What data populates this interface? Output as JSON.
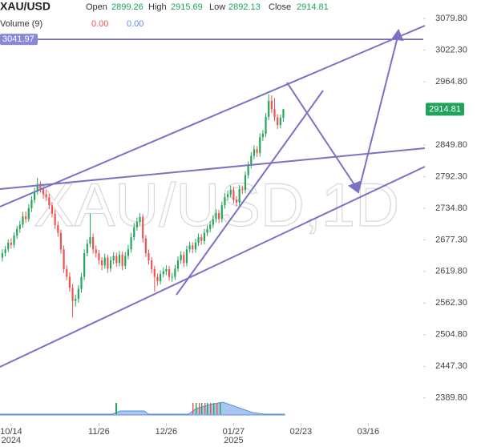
{
  "chart_data": {
    "type": "candlestick",
    "symbol": "XAU/USD",
    "watermark": "XAU/USD,1D",
    "legend": {
      "open_label": "Open",
      "open": 2899.26,
      "high_label": "High",
      "high": 2915.69,
      "low_label": "Low",
      "low": 2892.13,
      "close_label": "Close",
      "close": 2914.81,
      "volume_label": "Volume (9)",
      "volume_a": "0.00",
      "volume_b": "0.00"
    },
    "up_color": "#22a65b",
    "down_color": "#ef5350",
    "level": {
      "value": 3041.97,
      "color": "#5b5a9e"
    },
    "last_price": {
      "value": 2914.81,
      "color": "#1fa35a"
    },
    "ohlc": [
      [
        2645,
        2660,
        2638,
        2653
      ],
      [
        2653,
        2666,
        2647,
        2660
      ],
      [
        2660,
        2678,
        2655,
        2672
      ],
      [
        2672,
        2680,
        2661,
        2668
      ],
      [
        2668,
        2691,
        2663,
        2685
      ],
      [
        2685,
        2703,
        2679,
        2697
      ],
      [
        2697,
        2712,
        2690,
        2705
      ],
      [
        2705,
        2728,
        2699,
        2720
      ],
      [
        2720,
        2729,
        2708,
        2715
      ],
      [
        2715,
        2742,
        2710,
        2735
      ],
      [
        2735,
        2757,
        2728,
        2750
      ],
      [
        2750,
        2772,
        2744,
        2765
      ],
      [
        2765,
        2790,
        2759,
        2777
      ],
      [
        2777,
        2784,
        2763,
        2770
      ],
      [
        2770,
        2776,
        2752,
        2760
      ],
      [
        2760,
        2768,
        2748,
        2755
      ],
      [
        2755,
        2761,
        2733,
        2740
      ],
      [
        2740,
        2746,
        2718,
        2725
      ],
      [
        2725,
        2732,
        2697,
        2704
      ],
      [
        2704,
        2711,
        2683,
        2690
      ],
      [
        2690,
        2696,
        2652,
        2660
      ],
      [
        2660,
        2667,
        2617,
        2624
      ],
      [
        2624,
        2631,
        2603,
        2610
      ],
      [
        2610,
        2618,
        2583,
        2590
      ],
      [
        2590,
        2597,
        2536,
        2566
      ],
      [
        2566,
        2578,
        2556,
        2570
      ],
      [
        2570,
        2595,
        2563,
        2588
      ],
      [
        2588,
        2617,
        2581,
        2610
      ],
      [
        2610,
        2660,
        2604,
        2653
      ],
      [
        2653,
        2678,
        2647,
        2670
      ],
      [
        2670,
        2725,
        2664,
        2682
      ],
      [
        2682,
        2689,
        2652,
        2660
      ],
      [
        2660,
        2667,
        2645,
        2653
      ],
      [
        2653,
        2659,
        2632,
        2640
      ],
      [
        2640,
        2646,
        2622,
        2631
      ],
      [
        2631,
        2652,
        2625,
        2645
      ],
      [
        2645,
        2650,
        2617,
        2625
      ],
      [
        2625,
        2647,
        2619,
        2640
      ],
      [
        2640,
        2655,
        2633,
        2648
      ],
      [
        2648,
        2654,
        2628,
        2635
      ],
      [
        2635,
        2657,
        2629,
        2650
      ],
      [
        2650,
        2656,
        2622,
        2630
      ],
      [
        2630,
        2655,
        2624,
        2648
      ],
      [
        2648,
        2668,
        2642,
        2660
      ],
      [
        2660,
        2690,
        2654,
        2682
      ],
      [
        2682,
        2708,
        2676,
        2700
      ],
      [
        2700,
        2718,
        2694,
        2710
      ],
      [
        2710,
        2726,
        2703,
        2719
      ],
      [
        2719,
        2724,
        2672,
        2680
      ],
      [
        2680,
        2686,
        2646,
        2653
      ],
      [
        2653,
        2660,
        2633,
        2640
      ],
      [
        2640,
        2646,
        2616,
        2624
      ],
      [
        2624,
        2630,
        2583,
        2610
      ],
      [
        2610,
        2616,
        2594,
        2602
      ],
      [
        2602,
        2622,
        2596,
        2615
      ],
      [
        2615,
        2627,
        2609,
        2620
      ],
      [
        2620,
        2631,
        2613,
        2624
      ],
      [
        2624,
        2630,
        2603,
        2610
      ],
      [
        2610,
        2617,
        2601,
        2610
      ],
      [
        2610,
        2632,
        2604,
        2625
      ],
      [
        2625,
        2647,
        2619,
        2640
      ],
      [
        2640,
        2657,
        2634,
        2650
      ],
      [
        2650,
        2656,
        2628,
        2635
      ],
      [
        2635,
        2667,
        2629,
        2660
      ],
      [
        2660,
        2674,
        2654,
        2667
      ],
      [
        2667,
        2673,
        2653,
        2660
      ],
      [
        2660,
        2679,
        2654,
        2672
      ],
      [
        2672,
        2689,
        2666,
        2682
      ],
      [
        2682,
        2688,
        2668,
        2675
      ],
      [
        2675,
        2697,
        2669,
        2690
      ],
      [
        2690,
        2704,
        2684,
        2697
      ],
      [
        2697,
        2712,
        2691,
        2705
      ],
      [
        2705,
        2722,
        2699,
        2715
      ],
      [
        2715,
        2733,
        2709,
        2726
      ],
      [
        2726,
        2732,
        2708,
        2715
      ],
      [
        2715,
        2747,
        2709,
        2740
      ],
      [
        2740,
        2762,
        2734,
        2755
      ],
      [
        2755,
        2767,
        2749,
        2760
      ],
      [
        2760,
        2776,
        2754,
        2768
      ],
      [
        2768,
        2774,
        2743,
        2750
      ],
      [
        2750,
        2757,
        2738,
        2745
      ],
      [
        2745,
        2777,
        2739,
        2770
      ],
      [
        2770,
        2776,
        2761,
        2768
      ],
      [
        2768,
        2802,
        2762,
        2795
      ],
      [
        2795,
        2820,
        2789,
        2813
      ],
      [
        2813,
        2837,
        2807,
        2830
      ],
      [
        2830,
        2849,
        2824,
        2842
      ],
      [
        2842,
        2848,
        2828,
        2835
      ],
      [
        2835,
        2871,
        2829,
        2864
      ],
      [
        2864,
        2877,
        2857,
        2870
      ],
      [
        2870,
        2908,
        2864,
        2901
      ],
      [
        2901,
        2942,
        2895,
        2930
      ],
      [
        2930,
        2940,
        2908,
        2915
      ],
      [
        2915,
        2935,
        2893,
        2900
      ],
      [
        2900,
        2906,
        2879,
        2886
      ],
      [
        2886,
        2905,
        2880,
        2899.26
      ],
      [
        2899.26,
        2915.69,
        2892.13,
        2914.81
      ]
    ],
    "ylim": [
      2367.5,
      3113.5
    ],
    "yticks": [
      {
        "value": 3079.8,
        "label": "3079.80"
      },
      {
        "value": 3022.3,
        "label": "3022.30"
      },
      {
        "value": 2964.8,
        "label": "2964.80"
      },
      {
        "value": 2849.8,
        "label": "2849.80"
      },
      {
        "value": 2792.3,
        "label": "2792.30"
      },
      {
        "value": 2734.8,
        "label": "2734.80"
      },
      {
        "value": 2677.3,
        "label": "2677.30"
      },
      {
        "value": 2619.8,
        "label": "2619.80"
      },
      {
        "value": 2562.3,
        "label": "2562.30"
      },
      {
        "value": 2504.8,
        "label": "2504.80"
      },
      {
        "value": 2447.3,
        "label": "2447.30"
      },
      {
        "value": 2389.8,
        "label": "2389.80"
      }
    ],
    "xticks": [
      {
        "value": 3,
        "label": "10/14"
      },
      {
        "value": 33,
        "label": "11/26"
      },
      {
        "value": 56,
        "label": "12/26"
      },
      {
        "value": 79,
        "label": "01/27"
      },
      {
        "value": 102,
        "label": "02/23"
      },
      {
        "value": 125,
        "label": "03/16"
      }
    ],
    "year_labels": [
      {
        "value": 3,
        "label": "2024"
      },
      {
        "value": 79,
        "label": "2025"
      }
    ],
    "xlim": [
      -0.8,
      143.8
    ]
  }
}
